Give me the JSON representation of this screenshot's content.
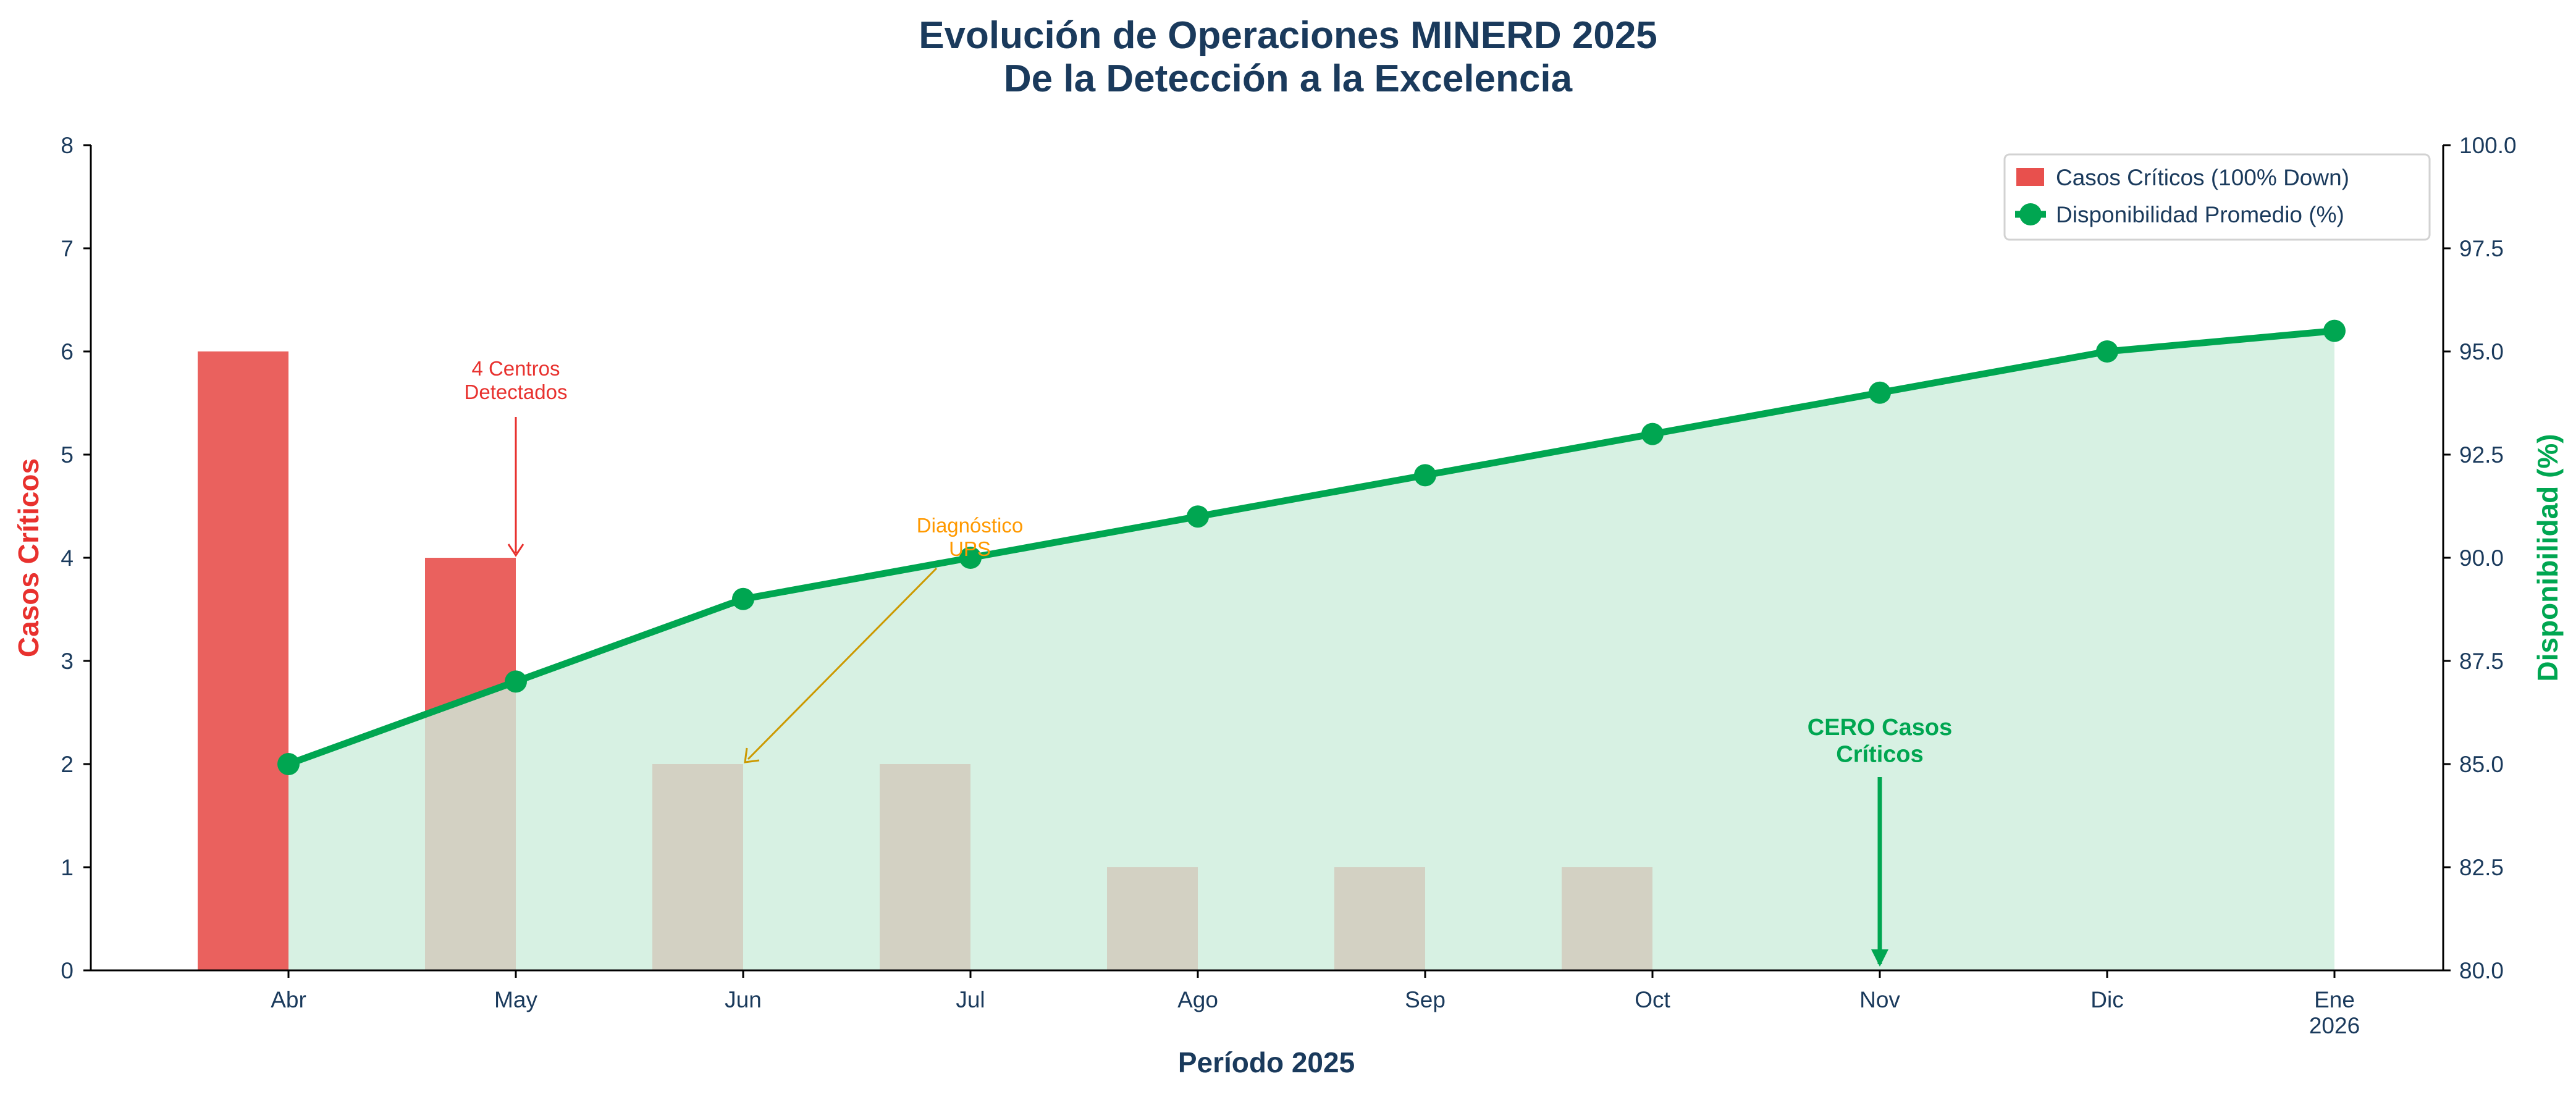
{
  "chart_data": {
    "type": "bar+line",
    "title": "Evolución de Operaciones MINERD 2025",
    "subtitle": "De la Detección a la Excelencia",
    "xlabel": "Período 2025",
    "ylabel_left": "Casos Críticos",
    "ylabel_right": "Disponibilidad (%)",
    "categories": [
      "Abr",
      "May",
      "Jun",
      "Jul",
      "Ago",
      "Sep",
      "Oct",
      "Nov",
      "Dic",
      "Ene\n2026"
    ],
    "ylim_left": [
      0,
      8
    ],
    "yticks_left": [
      "0",
      "1",
      "2",
      "3",
      "4",
      "5",
      "6",
      "7",
      "8"
    ],
    "ylim_right": [
      80,
      100
    ],
    "yticks_right": [
      "80.0",
      "82.5",
      "85.0",
      "87.5",
      "90.0",
      "92.5",
      "95.0",
      "97.5",
      "100.0"
    ],
    "grid": false,
    "legend_position": "top-right",
    "series": [
      {
        "name": "Casos Críticos (100% Down)",
        "type": "bar",
        "axis": "left",
        "color": "#e8504d",
        "values": [
          6,
          4,
          2,
          2,
          1,
          1,
          1,
          0,
          0,
          0
        ]
      },
      {
        "name": "Disponibilidad Promedio (%)",
        "type": "line",
        "axis": "right",
        "color": "#00a651",
        "fill": "#cdeddc",
        "values": [
          85,
          87,
          89,
          90,
          91,
          92,
          93,
          94,
          95,
          95.5
        ]
      }
    ],
    "annotations": [
      {
        "text": "4 Centros\nDetectados",
        "target": "May",
        "value": 4,
        "color": "#e8312e"
      },
      {
        "text": "Diagnóstico\nUPS",
        "target": "Jun",
        "value": 2,
        "color": "#ff9900"
      },
      {
        "text": "CERO Casos\nCríticos",
        "target": "Nov",
        "value": 0,
        "color": "#00a651"
      }
    ]
  },
  "colors": {
    "text": "#1a3a5c",
    "left_axis_label": "#e8312e",
    "right_axis_label": "#00a651"
  }
}
